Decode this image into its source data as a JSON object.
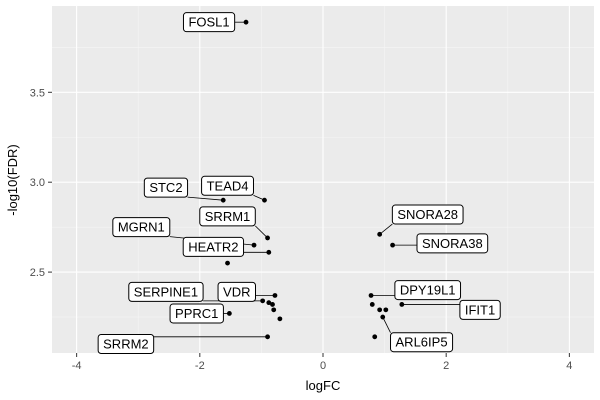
{
  "chart_data": {
    "type": "scatter",
    "title": "",
    "xlabel": "logFC",
    "ylabel": "-log10(FDR)",
    "xlim": [
      -4.4,
      4.4
    ],
    "ylim": [
      2.05,
      3.98
    ],
    "x_ticks": [
      -4,
      -2,
      0,
      2,
      4
    ],
    "y_ticks": [
      2.5,
      3.0,
      3.5
    ],
    "y_tick_labels": [
      "2.5",
      "3.0",
      "3.5"
    ],
    "grid": true,
    "legend": "none",
    "colors": {
      "panel": "#ebebeb",
      "grid_major": "#ffffff",
      "grid_minor": "#f5f5f5",
      "point": "#000000"
    },
    "points": [
      {
        "x": -1.25,
        "y": 3.89,
        "label": "FOSL1"
      },
      {
        "x": -0.95,
        "y": 2.9,
        "label": "TEAD4"
      },
      {
        "x": -1.62,
        "y": 2.9,
        "label": "STC2"
      },
      {
        "x": -0.9,
        "y": 2.69,
        "label": "SRRM1"
      },
      {
        "x": -0.88,
        "y": 2.61,
        "label": "HEATR2"
      },
      {
        "x": -1.12,
        "y": 2.65,
        "label": "MGRN1"
      },
      {
        "x": -1.55,
        "y": 2.55,
        "label": ""
      },
      {
        "x": -0.78,
        "y": 2.37,
        "label": "VDR"
      },
      {
        "x": -0.98,
        "y": 2.34,
        "label": "SERPINE1"
      },
      {
        "x": -0.82,
        "y": 2.32,
        "label": ""
      },
      {
        "x": -0.88,
        "y": 2.33,
        "label": ""
      },
      {
        "x": -0.8,
        "y": 2.29,
        "label": ""
      },
      {
        "x": -1.52,
        "y": 2.27,
        "label": "PPRC1"
      },
      {
        "x": -0.7,
        "y": 2.24,
        "label": ""
      },
      {
        "x": -0.9,
        "y": 2.14,
        "label": "SRRM2"
      },
      {
        "x": 0.92,
        "y": 2.71,
        "label": "SNORA28"
      },
      {
        "x": 1.13,
        "y": 2.65,
        "label": "SNORA38"
      },
      {
        "x": 0.78,
        "y": 2.37,
        "label": "DPY19L1"
      },
      {
        "x": 1.28,
        "y": 2.32,
        "label": "IFIT1"
      },
      {
        "x": 0.8,
        "y": 2.32,
        "label": ""
      },
      {
        "x": 0.92,
        "y": 2.29,
        "label": ""
      },
      {
        "x": 1.02,
        "y": 2.29,
        "label": ""
      },
      {
        "x": 0.97,
        "y": 2.25,
        "label": "ARL6IP5"
      },
      {
        "x": 0.84,
        "y": 2.14,
        "label": ""
      }
    ],
    "label_positions": [
      {
        "label": "FOSL1",
        "x": -1.85,
        "y": 3.89
      },
      {
        "label": "TEAD4",
        "x": -1.55,
        "y": 2.98
      },
      {
        "label": "STC2",
        "x": -2.55,
        "y": 2.97
      },
      {
        "label": "SRRM1",
        "x": -1.55,
        "y": 2.81
      },
      {
        "label": "MGRN1",
        "x": -2.95,
        "y": 2.75
      },
      {
        "label": "HEATR2",
        "x": -1.78,
        "y": 2.64
      },
      {
        "label": "SERPINE1",
        "x": -2.55,
        "y": 2.39
      },
      {
        "label": "VDR",
        "x": -1.4,
        "y": 2.39
      },
      {
        "label": "PPRC1",
        "x": -2.05,
        "y": 2.27
      },
      {
        "label": "SRRM2",
        "x": -3.2,
        "y": 2.1
      },
      {
        "label": "SNORA28",
        "x": 1.7,
        "y": 2.82
      },
      {
        "label": "SNORA38",
        "x": 2.1,
        "y": 2.66
      },
      {
        "label": "DPY19L1",
        "x": 1.7,
        "y": 2.4
      },
      {
        "label": "IFIT1",
        "x": 2.55,
        "y": 2.29
      },
      {
        "label": "ARL6IP5",
        "x": 1.6,
        "y": 2.11
      }
    ]
  }
}
